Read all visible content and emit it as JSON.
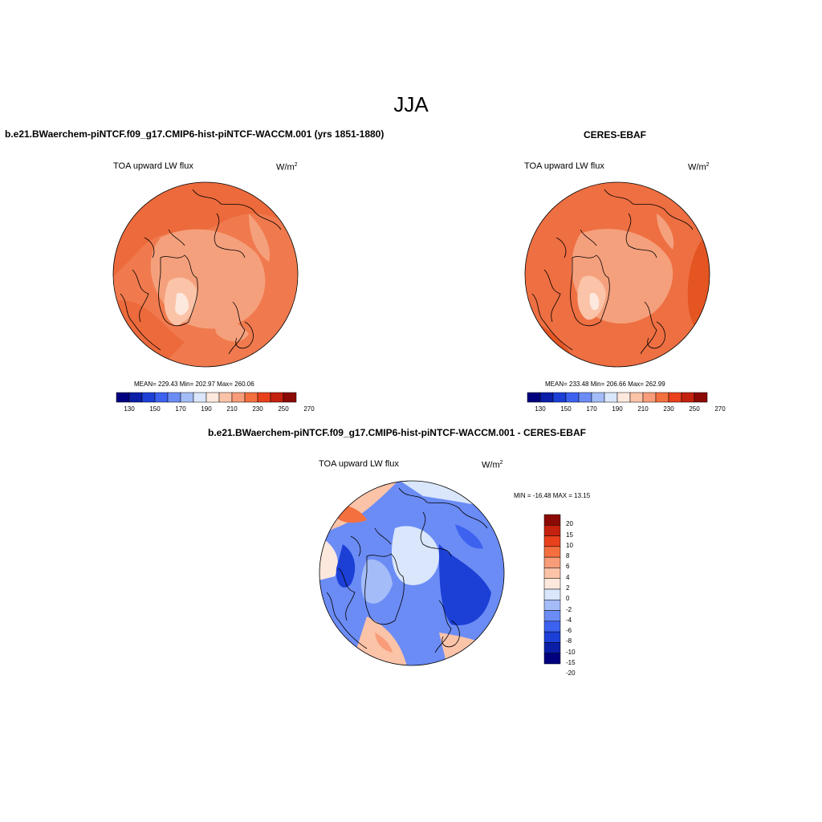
{
  "title": "JJA",
  "panels": [
    {
      "title": "b.e21.BWaerchem-piNTCF.f09_g17.CMIP6-hist-piNTCF-WACCM.001 (yrs 1851-1880)",
      "variable": "TOA upward LW flux",
      "units": "W/m",
      "units_sup": "2",
      "stats": "MEAN= 229.43  Min= 202.97  Max= 260.06",
      "colorbar_ticks": [
        "130",
        "150",
        "170",
        "190",
        "210",
        "230",
        "250",
        "270"
      ]
    },
    {
      "title": "CERES-EBAF",
      "variable": "TOA upward LW flux",
      "units": "W/m",
      "units_sup": "2",
      "stats": "MEAN= 233.48  Min= 206.66  Max= 262.99",
      "colorbar_ticks": [
        "130",
        "150",
        "170",
        "190",
        "210",
        "230",
        "250",
        "270"
      ]
    },
    {
      "title": "b.e21.BWaerchem-piNTCF.f09_g17.CMIP6-hist-piNTCF-WACCM.001 - CERES-EBAF",
      "variable": "TOA upward LW flux",
      "units": "W/m",
      "units_sup": "2",
      "stats": "MIN = -16.48 MAX =  13.15",
      "colorbar_ticks": [
        "20",
        "15",
        "10",
        "8",
        "6",
        "4",
        "2",
        "0",
        "-2",
        "-4",
        "-6",
        "-8",
        "-10",
        "-15",
        "-20"
      ]
    }
  ],
  "colors": {
    "abs_scale": [
      "#00007f",
      "#0a1ea8",
      "#1c3fd6",
      "#3d62f0",
      "#6b8cf5",
      "#a4bcf7",
      "#d9e6fb",
      "#fde8dd",
      "#fbc3a8",
      "#f89c79",
      "#f4703f",
      "#e8411c",
      "#c4210e",
      "#8b0a05"
    ],
    "diff_scale": [
      "#8b0a05",
      "#c4210e",
      "#e8411c",
      "#f4703f",
      "#f89c79",
      "#fbc3a8",
      "#fde8dd",
      "#d9e6fb",
      "#a4bcf7",
      "#6b8cf5",
      "#3d62f0",
      "#1c3fd6",
      "#0a1ea8",
      "#00007f"
    ]
  }
}
